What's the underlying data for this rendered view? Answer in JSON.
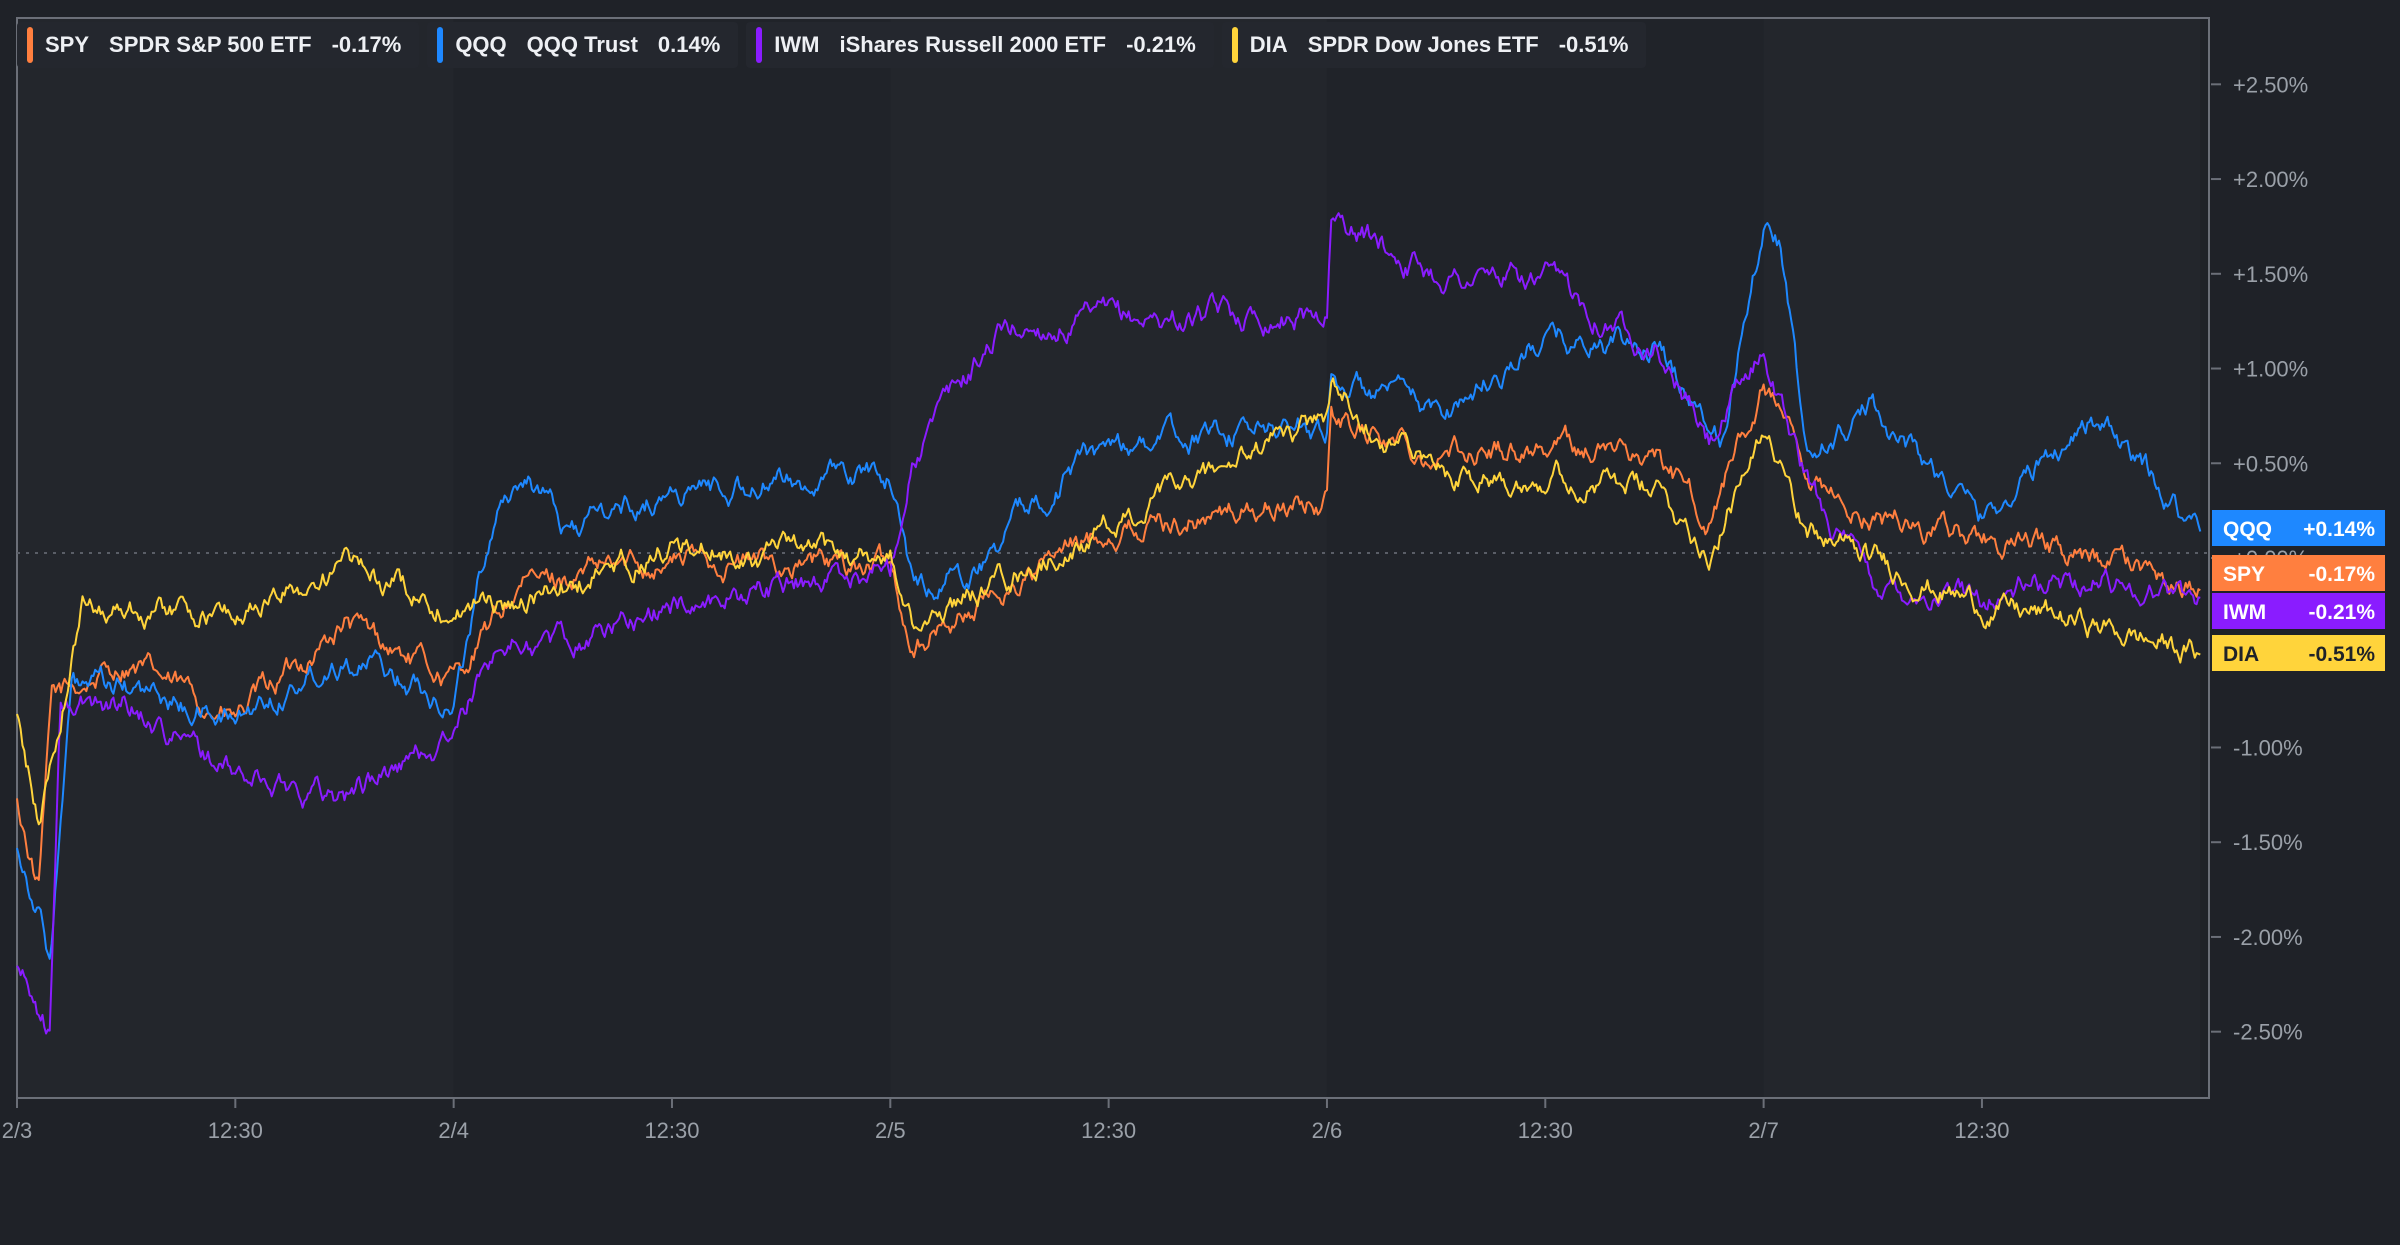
{
  "legend": [
    {
      "ticker": "SPY",
      "name": "SPDR S&P 500 ETF",
      "change": "-0.17%",
      "color": "#ff7f3f"
    },
    {
      "ticker": "QQQ",
      "name": "QQQ Trust",
      "change": "0.14%",
      "color": "#1e88ff"
    },
    {
      "ticker": "IWM",
      "name": "iShares Russell 2000 ETF",
      "change": "-0.21%",
      "color": "#8a1cff"
    },
    {
      "ticker": "DIA",
      "name": "SPDR Dow Jones ETF",
      "change": "-0.51%",
      "color": "#ffd43b"
    }
  ],
  "end_labels": [
    {
      "ticker": "QQQ",
      "value": "+0.14%",
      "color": "#1e88ff",
      "text_color": "#ffffff"
    },
    {
      "ticker": "SPY",
      "value": "-0.17%",
      "color": "#ff7f3f",
      "text_color": "#ffffff"
    },
    {
      "ticker": "IWM",
      "value": "-0.21%",
      "color": "#8a1cff",
      "text_color": "#ffffff"
    },
    {
      "ticker": "DIA",
      "value": "-0.51%",
      "color": "#ffd43b",
      "text_color": "#1f2228"
    }
  ],
  "chart_data": {
    "type": "line",
    "x": [
      "2/3 09:30",
      "2/3 12:30",
      "2/4 09:30",
      "2/4 12:30",
      "2/5 09:30",
      "2/5 12:30",
      "2/6 09:30",
      "2/6 12:30",
      "2/7 09:30",
      "2/7 12:30",
      "2/7 16:00"
    ],
    "x_tick_labels": [
      "2/3",
      "12:30",
      "2/4",
      "12:30",
      "2/5",
      "12:30",
      "2/6",
      "12:30",
      "2/7",
      "12:30"
    ],
    "y_tick_labels": [
      "+2.50%",
      "+2.00%",
      "+1.50%",
      "+1.00%",
      "+0.50%",
      "+0.00%",
      "-1.00%",
      "-1.50%",
      "-2.00%",
      "-2.50%"
    ],
    "ylim": [
      -2.85,
      2.85
    ],
    "unit": "%",
    "series": [
      {
        "name": "SPY",
        "color": "#ff7f3f",
        "points": [
          [
            0,
            -1.3
          ],
          [
            0.1,
            -1.75
          ],
          [
            0.16,
            -0.75
          ],
          [
            0.5,
            -0.55
          ],
          [
            1,
            -0.85
          ],
          [
            1.5,
            -0.35
          ],
          [
            2,
            -0.65
          ],
          [
            2.3,
            -0.15
          ],
          [
            3,
            0.0
          ],
          [
            4,
            -0.05
          ],
          [
            4.1,
            -0.45
          ],
          [
            5,
            0.15
          ],
          [
            6,
            0.3
          ],
          [
            6.02,
            0.75
          ],
          [
            6.5,
            0.55
          ],
          [
            7,
            0.6
          ],
          [
            7.5,
            0.55
          ],
          [
            7.75,
            0.2
          ],
          [
            8,
            0.9
          ],
          [
            8.1,
            0.7
          ],
          [
            8.2,
            0.3
          ],
          [
            9,
            0.1
          ],
          [
            9.5,
            0.0
          ],
          [
            10,
            -0.17
          ]
        ]
      },
      {
        "name": "QQQ",
        "color": "#1e88ff",
        "points": [
          [
            0,
            -1.5
          ],
          [
            0.1,
            -1.85
          ],
          [
            0.15,
            -2.1
          ],
          [
            0.25,
            -0.7
          ],
          [
            0.5,
            -0.7
          ],
          [
            1,
            -0.85
          ],
          [
            1.5,
            -0.5
          ],
          [
            2,
            -0.75
          ],
          [
            2.2,
            0.3
          ],
          [
            2.35,
            0.45
          ],
          [
            2.5,
            0.15
          ],
          [
            3,
            0.35
          ],
          [
            4,
            0.45
          ],
          [
            4.1,
            -0.15
          ],
          [
            4.4,
            -0.05
          ],
          [
            4.7,
            0.35
          ],
          [
            5,
            0.6
          ],
          [
            6,
            0.7
          ],
          [
            6.02,
            0.95
          ],
          [
            6.5,
            0.75
          ],
          [
            7,
            1.15
          ],
          [
            7.5,
            1.1
          ],
          [
            7.8,
            0.65
          ],
          [
            8,
            1.8
          ],
          [
            8.07,
            1.7
          ],
          [
            8.2,
            0.5
          ],
          [
            8.5,
            0.8
          ],
          [
            9,
            0.2
          ],
          [
            9.5,
            0.75
          ],
          [
            10,
            0.14
          ]
        ]
      },
      {
        "name": "IWM",
        "color": "#8a1cff",
        "points": [
          [
            0,
            -2.15
          ],
          [
            0.15,
            -2.5
          ],
          [
            0.2,
            -0.8
          ],
          [
            0.5,
            -0.75
          ],
          [
            1,
            -1.15
          ],
          [
            1.5,
            -1.25
          ],
          [
            2,
            -0.95
          ],
          [
            2.2,
            -0.45
          ],
          [
            2.5,
            -0.45
          ],
          [
            3,
            -0.25
          ],
          [
            4,
            -0.05
          ],
          [
            4.1,
            0.55
          ],
          [
            4.5,
            1.2
          ],
          [
            5,
            1.25
          ],
          [
            6,
            1.3
          ],
          [
            6.02,
            1.8
          ],
          [
            6.5,
            1.5
          ],
          [
            7,
            1.45
          ],
          [
            7.5,
            1.15
          ],
          [
            7.75,
            0.6
          ],
          [
            8,
            1.1
          ],
          [
            8.2,
            0.4
          ],
          [
            8.5,
            -0.15
          ],
          [
            9,
            -0.2
          ],
          [
            9.5,
            -0.1
          ],
          [
            10,
            -0.21
          ]
        ]
      },
      {
        "name": "DIA",
        "color": "#ffd43b",
        "points": [
          [
            0,
            -0.85
          ],
          [
            0.1,
            -1.4
          ],
          [
            0.3,
            -0.25
          ],
          [
            0.5,
            -0.25
          ],
          [
            1,
            -0.3
          ],
          [
            1.5,
            -0.05
          ],
          [
            2,
            -0.25
          ],
          [
            2.3,
            -0.25
          ],
          [
            3,
            0.05
          ],
          [
            4,
            0.0
          ],
          [
            4.1,
            -0.35
          ],
          [
            5,
            0.15
          ],
          [
            6,
            0.75
          ],
          [
            6.02,
            0.9
          ],
          [
            6.5,
            0.45
          ],
          [
            7,
            0.45
          ],
          [
            7.5,
            0.35
          ],
          [
            7.75,
            0.05
          ],
          [
            8,
            0.6
          ],
          [
            8.1,
            0.55
          ],
          [
            8.2,
            0.15
          ],
          [
            9,
            -0.25
          ],
          [
            9.5,
            -0.35
          ],
          [
            10,
            -0.51
          ]
        ]
      }
    ]
  }
}
